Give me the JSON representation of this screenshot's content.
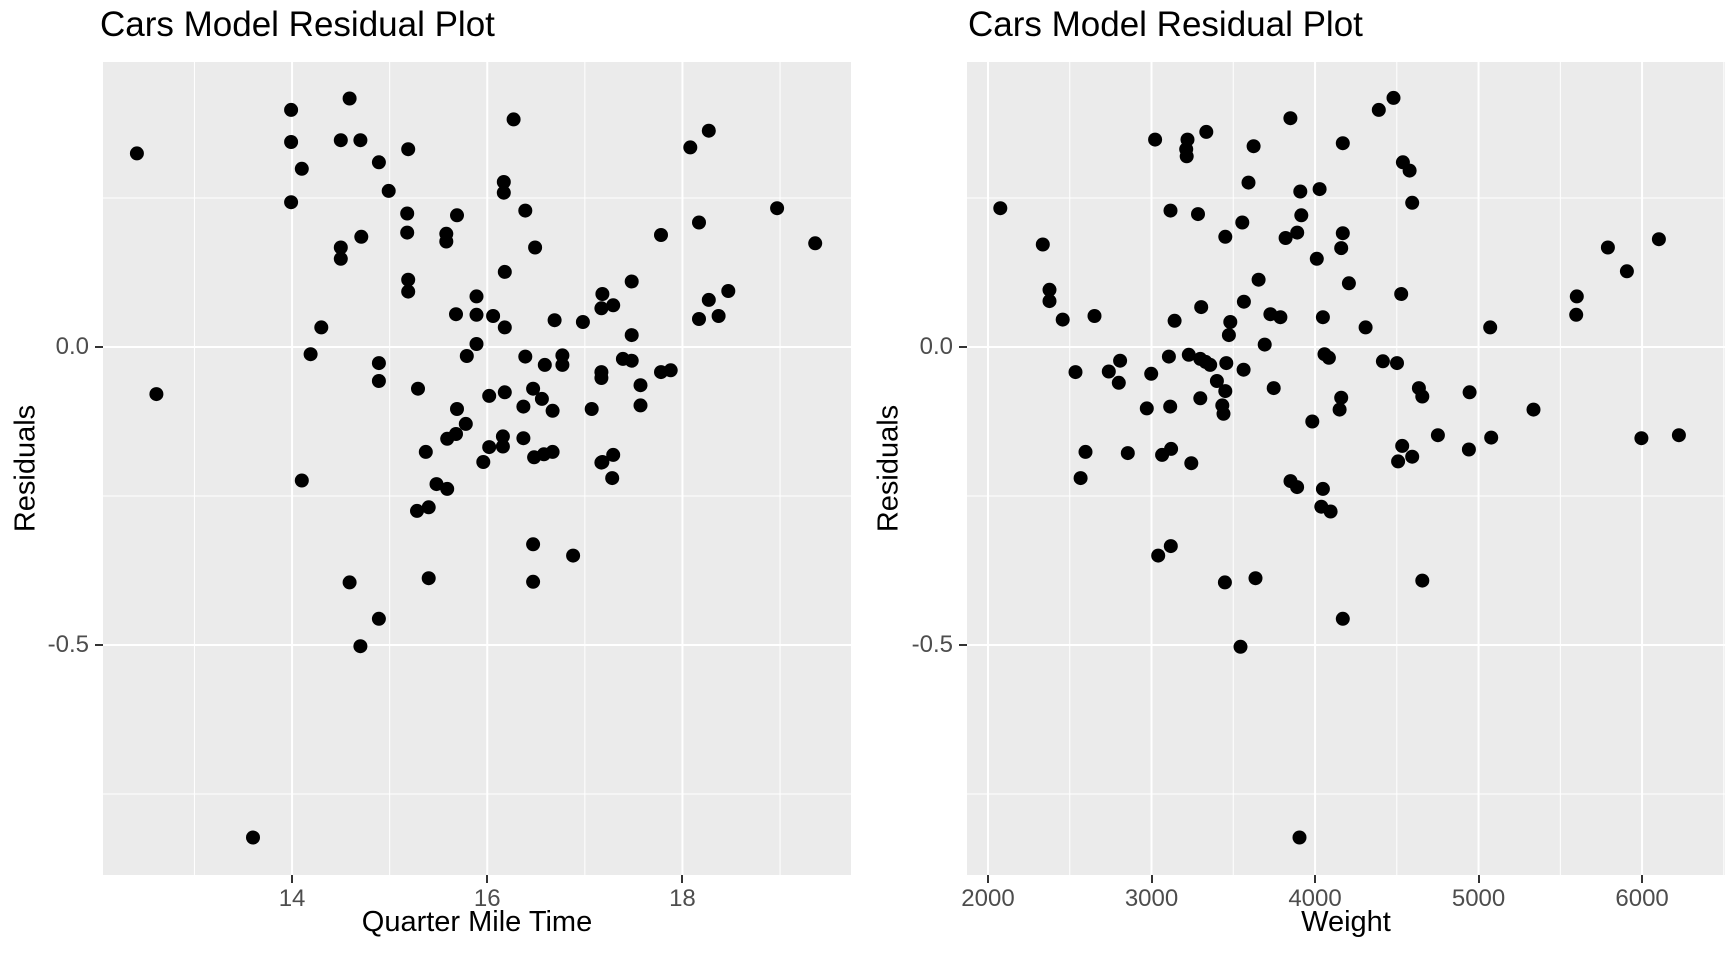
{
  "page": {
    "background": "#ffffff"
  },
  "styles": {
    "panel_bg": "#ebebeb",
    "grid_color": "#ffffff",
    "point_color": "#000000",
    "tick_color": "#333333",
    "tick_label_color": "#4d4d4d",
    "point_radius": 7
  },
  "chart_data": [
    {
      "type": "scatter",
      "title": "Cars Model Residual Plot",
      "xlabel": "Quarter Mile Time",
      "ylabel": "Residuals",
      "xlim": [
        12.063,
        19.727
      ],
      "ylim": [
        -0.886,
        0.4783
      ],
      "grid": true,
      "legend_position": "none",
      "x_ticks": [
        {
          "value": 14,
          "label": "14"
        },
        {
          "value": 16,
          "label": "16"
        },
        {
          "value": 18,
          "label": "18"
        }
      ],
      "x_minor": [
        13,
        15,
        17,
        19
      ],
      "y_ticks": [
        {
          "value": 0.0,
          "label": "0.0"
        },
        {
          "value": -0.5,
          "label": "-0.5"
        }
      ],
      "y_minor": [
        0.25,
        -0.25,
        -0.75
      ],
      "points": [
        [
          12.41,
          0.325
        ],
        [
          12.61,
          -0.079
        ],
        [
          13.99,
          0.398
        ],
        [
          13.99,
          0.344
        ],
        [
          14.1,
          0.299
        ],
        [
          14.59,
          0.417
        ],
        [
          14.5,
          0.347
        ],
        [
          14.7,
          0.347
        ],
        [
          14.89,
          0.31
        ],
        [
          15.19,
          0.332
        ],
        [
          14.99,
          0.262
        ],
        [
          13.99,
          0.243
        ],
        [
          15.18,
          0.224
        ],
        [
          15.69,
          0.221
        ],
        [
          15.18,
          0.192
        ],
        [
          15.58,
          0.19
        ],
        [
          15.58,
          0.177
        ],
        [
          14.71,
          0.185
        ],
        [
          14.5,
          0.167
        ],
        [
          14.5,
          0.148
        ],
        [
          15.19,
          0.113
        ],
        [
          15.19,
          0.093
        ],
        [
          15.89,
          0.085
        ],
        [
          15.68,
          0.055
        ],
        [
          15.89,
          0.054
        ],
        [
          14.3,
          0.033
        ],
        [
          15.89,
          0.005
        ],
        [
          15.79,
          -0.015
        ],
        [
          14.19,
          -0.012
        ],
        [
          14.89,
          -0.027
        ],
        [
          14.89,
          -0.057
        ],
        [
          15.29,
          -0.07
        ],
        [
          15.69,
          -0.104
        ],
        [
          15.78,
          -0.129
        ],
        [
          15.59,
          -0.154
        ],
        [
          15.68,
          -0.146
        ],
        [
          15.37,
          -0.176
        ],
        [
          15.96,
          -0.193
        ],
        [
          16.27,
          0.382
        ],
        [
          18.27,
          0.363
        ],
        [
          18.08,
          0.335
        ],
        [
          16.17,
          0.277
        ],
        [
          16.17,
          0.259
        ],
        [
          16.39,
          0.229
        ],
        [
          18.97,
          0.233
        ],
        [
          18.17,
          0.209
        ],
        [
          17.78,
          0.188
        ],
        [
          19.36,
          0.174
        ],
        [
          16.49,
          0.167
        ],
        [
          16.18,
          0.126
        ],
        [
          17.48,
          0.11
        ],
        [
          17.18,
          0.089
        ],
        [
          18.47,
          0.094
        ],
        [
          18.27,
          0.079
        ],
        [
          17.17,
          0.065
        ],
        [
          17.29,
          0.07
        ],
        [
          16.06,
          0.052
        ],
        [
          16.69,
          0.045
        ],
        [
          16.18,
          0.033
        ],
        [
          16.98,
          0.042
        ],
        [
          18.17,
          0.047
        ],
        [
          18.37,
          0.052
        ],
        [
          17.48,
          0.02
        ],
        [
          16.39,
          -0.016
        ],
        [
          16.77,
          -0.014
        ],
        [
          16.77,
          -0.03
        ],
        [
          16.59,
          -0.03
        ],
        [
          17.39,
          -0.02
        ],
        [
          17.48,
          -0.023
        ],
        [
          17.17,
          -0.042
        ],
        [
          17.17,
          -0.052
        ],
        [
          17.78,
          -0.042
        ],
        [
          17.88,
          -0.039
        ],
        [
          17.57,
          -0.064
        ],
        [
          16.02,
          -0.082
        ],
        [
          16.18,
          -0.076
        ],
        [
          16.47,
          -0.07
        ],
        [
          16.56,
          -0.087
        ],
        [
          16.37,
          -0.1
        ],
        [
          16.67,
          -0.107
        ],
        [
          17.07,
          -0.104
        ],
        [
          17.57,
          -0.098
        ],
        [
          16.16,
          -0.15
        ],
        [
          16.16,
          -0.167
        ],
        [
          16.37,
          -0.153
        ],
        [
          16.02,
          -0.168
        ],
        [
          16.48,
          -0.185
        ],
        [
          16.58,
          -0.18
        ],
        [
          16.67,
          -0.176
        ],
        [
          17.29,
          -0.181
        ],
        [
          17.17,
          -0.194
        ],
        [
          14.1,
          -0.224
        ],
        [
          15.48,
          -0.23
        ],
        [
          15.59,
          -0.238
        ],
        [
          15.28,
          -0.275
        ],
        [
          15.4,
          -0.269
        ],
        [
          14.59,
          -0.395
        ],
        [
          15.4,
          -0.388
        ],
        [
          14.89,
          -0.456
        ],
        [
          14.7,
          -0.502
        ],
        [
          13.6,
          -0.823
        ],
        [
          16.47,
          -0.331
        ],
        [
          16.88,
          -0.35
        ],
        [
          16.47,
          -0.394
        ],
        [
          17.18,
          -0.193
        ],
        [
          17.28,
          -0.22
        ]
      ]
    },
    {
      "type": "scatter",
      "title": "Cars Model Residual Plot",
      "xlabel": "Weight",
      "ylabel": "Residuals",
      "xlim": [
        1871.6,
        6507.0
      ],
      "ylim": [
        -0.886,
        0.4783
      ],
      "grid": true,
      "legend_position": "none",
      "x_ticks": [
        {
          "value": 2000,
          "label": "2000"
        },
        {
          "value": 3000,
          "label": "3000"
        },
        {
          "value": 4000,
          "label": "4000"
        },
        {
          "value": 5000,
          "label": "5000"
        },
        {
          "value": 6000,
          "label": "6000"
        }
      ],
      "x_minor": [
        2500,
        3500,
        4500,
        5500,
        6500
      ],
      "y_ticks": [
        {
          "value": 0.0,
          "label": "0.0"
        },
        {
          "value": -0.5,
          "label": "-0.5"
        }
      ],
      "y_minor": [
        0.25,
        -0.25,
        -0.75
      ],
      "points": [
        [
          2075,
          0.233
        ],
        [
          2335,
          0.172
        ],
        [
          2376,
          0.096
        ],
        [
          2376,
          0.077
        ],
        [
          2457,
          0.046
        ],
        [
          2651,
          0.052
        ],
        [
          3022,
          0.348
        ],
        [
          3220,
          0.348
        ],
        [
          3212,
          0.332
        ],
        [
          3215,
          0.32
        ],
        [
          3335,
          0.361
        ],
        [
          3849,
          0.384
        ],
        [
          3624,
          0.337
        ],
        [
          3593,
          0.276
        ],
        [
          3910,
          0.261
        ],
        [
          4028,
          0.265
        ],
        [
          3116,
          0.229
        ],
        [
          3284,
          0.223
        ],
        [
          3555,
          0.209
        ],
        [
          3451,
          0.185
        ],
        [
          3916,
          0.221
        ],
        [
          3820,
          0.183
        ],
        [
          3891,
          0.192
        ],
        [
          4011,
          0.148
        ],
        [
          3655,
          0.113
        ],
        [
          3565,
          0.076
        ],
        [
          3304,
          0.067
        ],
        [
          3727,
          0.055
        ],
        [
          3788,
          0.05
        ],
        [
          3141,
          0.044
        ],
        [
          3482,
          0.042
        ],
        [
          3473,
          0.02
        ],
        [
          3692,
          0.004
        ],
        [
          4048,
          0.05
        ],
        [
          3106,
          -0.016
        ],
        [
          3228,
          -0.013
        ],
        [
          3298,
          -0.02
        ],
        [
          3331,
          -0.025
        ],
        [
          3359,
          -0.03
        ],
        [
          3457,
          -0.027
        ],
        [
          3563,
          -0.038
        ],
        [
          2808,
          -0.023
        ],
        [
          2739,
          -0.041
        ],
        [
          2535,
          -0.042
        ],
        [
          2998,
          -0.045
        ],
        [
          2800,
          -0.06
        ],
        [
          3400,
          -0.057
        ],
        [
          3451,
          -0.074
        ],
        [
          3298,
          -0.086
        ],
        [
          3433,
          -0.098
        ],
        [
          3440,
          -0.112
        ],
        [
          2971,
          -0.103
        ],
        [
          3114,
          -0.1
        ],
        [
          3747,
          -0.069
        ],
        [
          4058,
          -0.012
        ],
        [
          4085,
          -0.018
        ],
        [
          3983,
          -0.125
        ],
        [
          4160,
          -0.085
        ],
        [
          4150,
          -0.105
        ],
        [
          2596,
          -0.176
        ],
        [
          2855,
          -0.178
        ],
        [
          3065,
          -0.181
        ],
        [
          3120,
          -0.171
        ],
        [
          3243,
          -0.195
        ],
        [
          4480,
          0.418
        ],
        [
          4390,
          0.398
        ],
        [
          4170,
          0.342
        ],
        [
          4537,
          0.31
        ],
        [
          4578,
          0.296
        ],
        [
          4594,
          0.242
        ],
        [
          4170,
          0.191
        ],
        [
          4160,
          0.166
        ],
        [
          4207,
          0.107
        ],
        [
          4527,
          0.089
        ],
        [
          5791,
          0.167
        ],
        [
          6103,
          0.181
        ],
        [
          5907,
          0.127
        ],
        [
          5601,
          0.085
        ],
        [
          5597,
          0.054
        ],
        [
          4309,
          0.033
        ],
        [
          5071,
          0.033
        ],
        [
          4415,
          -0.024
        ],
        [
          4501,
          -0.027
        ],
        [
          4635,
          -0.069
        ],
        [
          4656,
          -0.083
        ],
        [
          4945,
          -0.076
        ],
        [
          5336,
          -0.105
        ],
        [
          4751,
          -0.148
        ],
        [
          5077,
          -0.152
        ],
        [
          4533,
          -0.166
        ],
        [
          4508,
          -0.192
        ],
        [
          4594,
          -0.184
        ],
        [
          4941,
          -0.172
        ],
        [
          5996,
          -0.153
        ],
        [
          6225,
          -0.148
        ],
        [
          2566,
          -0.22
        ],
        [
          3850,
          -0.225
        ],
        [
          3890,
          -0.235
        ],
        [
          4048,
          -0.238
        ],
        [
          4038,
          -0.268
        ],
        [
          4095,
          -0.276
        ],
        [
          3041,
          -0.35
        ],
        [
          3118,
          -0.334
        ],
        [
          3449,
          -0.395
        ],
        [
          3636,
          -0.388
        ],
        [
          3544,
          -0.503
        ],
        [
          4170,
          -0.456
        ],
        [
          3905,
          -0.823
        ],
        [
          4656,
          -0.392
        ]
      ]
    }
  ]
}
